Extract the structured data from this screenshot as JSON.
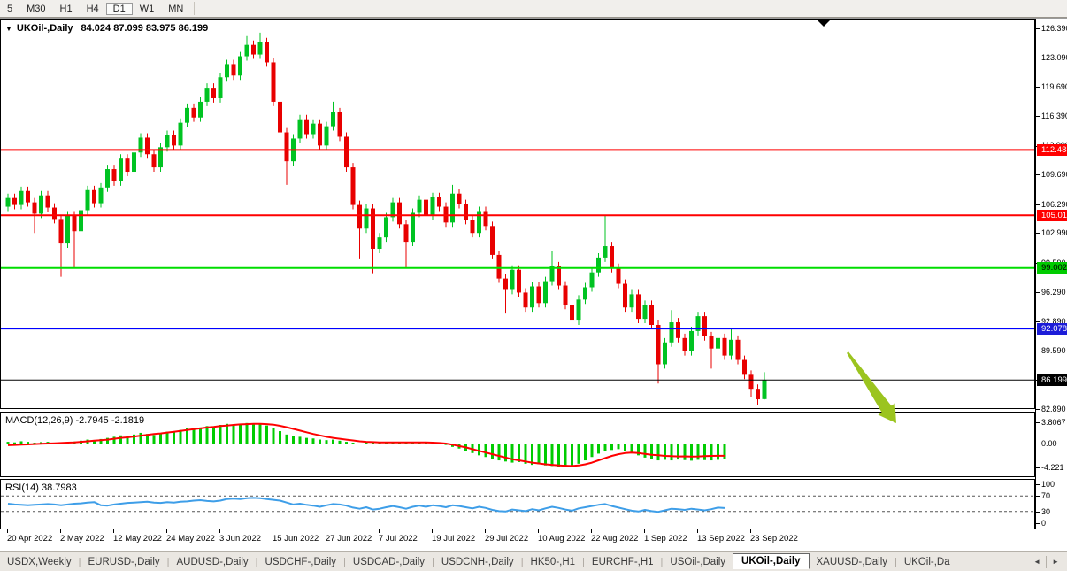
{
  "toolbar": {
    "timeframes": [
      {
        "label": "5",
        "active": false
      },
      {
        "label": "M30",
        "active": false
      },
      {
        "label": "H1",
        "active": false
      },
      {
        "label": "H4",
        "active": false
      },
      {
        "label": "D1",
        "active": true
      },
      {
        "label": "W1",
        "active": false
      },
      {
        "label": "MN",
        "active": false
      }
    ]
  },
  "chart": {
    "dropdown_icon": "▼",
    "symbol_label": "UKOil-,Daily",
    "ohlc_label": "84.024 87.099 83.975 86.199",
    "macd_label": "MACD(12,26,9) -2.7945 -2.1819",
    "rsi_label": "RSI(14) 38.7983"
  },
  "chart_data": {
    "type": "candlestick",
    "symbol": "UKOil-",
    "timeframe": "Daily",
    "current_ohlc": {
      "open": 84.024,
      "high": 87.099,
      "low": 83.975,
      "close": 86.199
    },
    "colors": {
      "bull": "#00c322",
      "bear": "#e80000",
      "macd_hist": "#00cc00",
      "macd_signal": "#ff0000",
      "rsi_line": "#3e9ee8",
      "arrow": "#9bc41f"
    },
    "y_axis_ticks": [
      "126.390",
      "123.090",
      "119.690",
      "116.390",
      "112.990",
      "109.690",
      "106.290",
      "102.990",
      "99.590",
      "96.290",
      "92.890",
      "89.590",
      "86.290",
      "82.890"
    ],
    "hlines": [
      {
        "price": 112.488,
        "label": "112.488",
        "color": "#ff0000",
        "label_bg": "#ff0000",
        "label_fg": "#ffffff",
        "width": 2
      },
      {
        "price": 105.015,
        "label": "105.015",
        "color": "#ff0000",
        "label_bg": "#ff0000",
        "label_fg": "#ffffff",
        "width": 2
      },
      {
        "price": 99.002,
        "label": "99.002",
        "color": "#00dd00",
        "label_bg": "#00cc00",
        "label_fg": "#000000",
        "width": 2
      },
      {
        "price": 92.078,
        "label": "92.078",
        "color": "#0000ff",
        "label_bg": "#1c1cd8",
        "label_fg": "#ffffff",
        "width": 2
      },
      {
        "price": 86.199,
        "label": "86.199",
        "color": "#000000",
        "label_bg": "#000000",
        "label_fg": "#ffffff",
        "width": 1
      }
    ],
    "x_ticks": [
      "20 Apr 2022",
      "2 May 2022",
      "12 May 2022",
      "24 May 2022",
      "3 Jun 2022",
      "15 Jun 2022",
      "27 Jun 2022",
      "7 Jul 2022",
      "19 Jul 2022",
      "29 Jul 2022",
      "10 Aug 2022",
      "22 Aug 2022",
      "1 Sep 2022",
      "13 Sep 2022",
      "23 Sep 2022"
    ],
    "candles": [
      [
        106.0,
        107.5,
        105.5,
        107.0
      ],
      [
        107.0,
        107.5,
        105.7,
        106.2
      ],
      [
        106.2,
        108.3,
        105.7,
        107.8
      ],
      [
        107.8,
        108.3,
        106.0,
        106.5
      ],
      [
        106.5,
        107.0,
        103.0,
        105.2
      ],
      [
        105.2,
        107.8,
        104.7,
        107.3
      ],
      [
        107.3,
        107.8,
        105.4,
        105.9
      ],
      [
        105.9,
        106.4,
        104.1,
        104.6
      ],
      [
        104.6,
        105.1,
        98.0,
        101.8
      ],
      [
        101.8,
        105.5,
        101.3,
        105.0
      ],
      [
        105.0,
        105.5,
        99.0,
        103.2
      ],
      [
        103.2,
        106.1,
        102.7,
        105.6
      ],
      [
        105.6,
        108.4,
        105.1,
        107.9
      ],
      [
        107.9,
        108.4,
        105.9,
        106.4
      ],
      [
        106.4,
        108.7,
        105.9,
        108.2
      ],
      [
        108.2,
        110.8,
        107.7,
        110.3
      ],
      [
        110.3,
        110.8,
        108.4,
        108.9
      ],
      [
        108.9,
        112.0,
        108.4,
        111.5
      ],
      [
        111.5,
        112.0,
        109.5,
        110.0
      ],
      [
        110.0,
        112.7,
        109.5,
        112.2
      ],
      [
        112.2,
        114.4,
        111.7,
        113.9
      ],
      [
        113.9,
        114.4,
        111.5,
        112.0
      ],
      [
        112.0,
        112.5,
        110.0,
        110.5
      ],
      [
        110.5,
        113.3,
        110.0,
        112.8
      ],
      [
        112.8,
        114.7,
        112.3,
        114.2
      ],
      [
        114.2,
        114.7,
        112.5,
        113.0
      ],
      [
        113.0,
        116.1,
        112.5,
        115.6
      ],
      [
        115.6,
        117.8,
        115.1,
        117.3
      ],
      [
        117.3,
        117.8,
        115.7,
        116.2
      ],
      [
        116.2,
        118.5,
        115.7,
        118.0
      ],
      [
        118.0,
        120.1,
        117.5,
        119.6
      ],
      [
        119.6,
        120.1,
        117.9,
        118.4
      ],
      [
        118.4,
        121.3,
        117.9,
        120.8
      ],
      [
        120.8,
        122.8,
        120.3,
        122.3
      ],
      [
        122.3,
        122.8,
        120.5,
        121.0
      ],
      [
        121.0,
        123.7,
        120.5,
        123.2
      ],
      [
        123.2,
        125.5,
        122.7,
        124.5
      ],
      [
        124.5,
        125.0,
        122.9,
        123.4
      ],
      [
        123.4,
        125.9,
        122.9,
        124.8
      ],
      [
        124.8,
        125.3,
        122.0,
        122.5
      ],
      [
        122.5,
        123.0,
        117.5,
        118.0
      ],
      [
        118.0,
        118.5,
        114.0,
        114.5
      ],
      [
        114.5,
        115.0,
        108.5,
        111.2
      ],
      [
        111.2,
        114.3,
        110.7,
        113.8
      ],
      [
        113.8,
        116.5,
        113.3,
        116.0
      ],
      [
        116.0,
        116.5,
        113.8,
        114.3
      ],
      [
        114.3,
        116.0,
        113.8,
        115.5
      ],
      [
        115.5,
        116.0,
        112.5,
        113.0
      ],
      [
        113.0,
        115.7,
        112.5,
        115.2
      ],
      [
        115.2,
        118.0,
        114.7,
        116.8
      ],
      [
        116.8,
        117.3,
        113.5,
        114.0
      ],
      [
        114.0,
        114.5,
        110.0,
        110.5
      ],
      [
        110.5,
        111.0,
        105.7,
        106.2
      ],
      [
        106.2,
        106.7,
        100.0,
        103.5
      ],
      [
        103.5,
        106.3,
        103.0,
        105.8
      ],
      [
        105.8,
        106.3,
        98.4,
        101.2
      ],
      [
        101.2,
        103.0,
        100.7,
        102.5
      ],
      [
        102.5,
        105.3,
        102.0,
        104.8
      ],
      [
        104.8,
        107.0,
        104.3,
        106.5
      ],
      [
        106.5,
        107.0,
        103.5,
        104.0
      ],
      [
        104.0,
        104.5,
        99.0,
        102.0
      ],
      [
        102.0,
        105.8,
        101.5,
        105.3
      ],
      [
        105.3,
        107.3,
        104.8,
        106.8
      ],
      [
        106.8,
        107.3,
        104.5,
        105.0
      ],
      [
        105.0,
        107.6,
        104.5,
        107.1
      ],
      [
        107.1,
        107.6,
        105.5,
        106.0
      ],
      [
        106.0,
        106.5,
        103.7,
        104.2
      ],
      [
        104.2,
        108.5,
        103.7,
        107.5
      ],
      [
        107.5,
        108.0,
        105.8,
        106.3
      ],
      [
        106.3,
        106.8,
        104.0,
        104.5
      ],
      [
        104.5,
        105.0,
        102.5,
        103.0
      ],
      [
        103.0,
        106.0,
        102.5,
        105.5
      ],
      [
        105.5,
        106.0,
        103.3,
        103.8
      ],
      [
        103.8,
        104.3,
        100.0,
        100.5
      ],
      [
        100.5,
        101.0,
        97.3,
        97.8
      ],
      [
        97.8,
        98.3,
        93.8,
        96.5
      ],
      [
        96.5,
        99.3,
        96.0,
        98.8
      ],
      [
        98.8,
        99.3,
        95.7,
        96.2
      ],
      [
        96.2,
        96.7,
        94.0,
        94.5
      ],
      [
        94.5,
        97.4,
        94.0,
        96.9
      ],
      [
        96.9,
        97.4,
        94.5,
        95.0
      ],
      [
        95.0,
        98.0,
        94.5,
        97.5
      ],
      [
        97.5,
        101.0,
        97.0,
        99.2
      ],
      [
        99.2,
        99.7,
        96.5,
        97.0
      ],
      [
        97.0,
        97.5,
        94.3,
        94.8
      ],
      [
        94.8,
        95.3,
        91.6,
        93.0
      ],
      [
        93.0,
        95.9,
        92.5,
        95.4
      ],
      [
        95.4,
        97.3,
        94.9,
        96.8
      ],
      [
        96.8,
        99.0,
        96.3,
        98.5
      ],
      [
        98.5,
        100.7,
        98.0,
        100.2
      ],
      [
        100.2,
        105.0,
        99.7,
        101.5
      ],
      [
        101.5,
        102.0,
        98.5,
        99.0
      ],
      [
        99.0,
        99.5,
        96.7,
        97.2
      ],
      [
        97.2,
        97.7,
        94.0,
        94.5
      ],
      [
        94.5,
        96.5,
        94.0,
        96.0
      ],
      [
        96.0,
        96.5,
        92.7,
        93.2
      ],
      [
        93.2,
        95.3,
        92.7,
        94.8
      ],
      [
        94.8,
        95.3,
        92.0,
        92.5
      ],
      [
        92.5,
        93.0,
        85.8,
        88.0
      ],
      [
        88.0,
        91.0,
        87.5,
        90.5
      ],
      [
        90.5,
        94.2,
        90.0,
        92.8
      ],
      [
        92.8,
        93.3,
        90.5,
        91.0
      ],
      [
        91.0,
        91.5,
        89.0,
        89.5
      ],
      [
        89.5,
        92.3,
        89.0,
        91.8
      ],
      [
        91.8,
        94.0,
        91.3,
        93.5
      ],
      [
        93.5,
        94.0,
        90.7,
        91.2
      ],
      [
        91.2,
        91.7,
        87.5,
        89.8
      ],
      [
        89.8,
        91.5,
        89.3,
        91.0
      ],
      [
        91.0,
        91.5,
        88.5,
        89.0
      ],
      [
        89.0,
        92.0,
        88.5,
        90.8
      ],
      [
        90.8,
        91.3,
        88.0,
        88.5
      ],
      [
        88.5,
        89.0,
        86.3,
        86.8
      ],
      [
        86.8,
        87.3,
        84.3,
        85.2
      ],
      [
        85.2,
        85.7,
        83.3,
        84.0
      ],
      [
        84.02,
        87.1,
        83.98,
        86.2
      ]
    ],
    "macd": {
      "name": "MACD(12,26,9)",
      "current_values": [
        -2.7945,
        -2.1819
      ],
      "axis_labels": [
        "3.8067",
        "0.00",
        "-4.221"
      ],
      "axis_values": [
        3.8067,
        0,
        -4.221
      ],
      "histogram": [
        0.3,
        0.2,
        0.4,
        0.3,
        0.15,
        0.25,
        0.3,
        0.1,
        -0.15,
        0.25,
        0.35,
        0.5,
        0.7,
        0.6,
        0.8,
        1.0,
        1.2,
        1.45,
        1.3,
        1.6,
        1.9,
        1.7,
        1.5,
        1.85,
        2.1,
        2.0,
        2.4,
        2.7,
        2.5,
        2.85,
        3.1,
        2.9,
        3.3,
        3.5,
        3.2,
        3.5,
        3.65,
        3.4,
        3.5,
        3.2,
        2.8,
        2.2,
        1.6,
        1.4,
        1.2,
        1.0,
        0.9,
        0.7,
        0.6,
        0.7,
        0.5,
        0.3,
        0.15,
        -0.1,
        0.15,
        0.2,
        0.15,
        0.2,
        0.25,
        0.2,
        0.15,
        0.2,
        0.25,
        0.2,
        0.15,
        0.2,
        -0.25,
        -0.6,
        -0.9,
        -1.3,
        -1.7,
        -2.1,
        -2.4,
        -2.7,
        -3.0,
        -3.2,
        -3.4,
        -3.3,
        -3.6,
        -3.8,
        -3.7,
        -3.9,
        -4.0,
        -4.2,
        -4.1,
        -4.0,
        -3.6,
        -3.0,
        -2.4,
        -1.8,
        -1.4,
        -1.15,
        -1.0,
        -1.3,
        -1.7,
        -2.1,
        -2.5,
        -2.8,
        -3.0,
        -2.9,
        -3.0,
        -2.85,
        -2.95,
        -3.05,
        -2.9,
        -2.95,
        -3.0,
        -2.9,
        -2.7945
      ],
      "signal": [
        -0.3,
        -0.25,
        -0.2,
        -0.15,
        -0.1,
        -0.05,
        0.0,
        0.05,
        0.1,
        0.15,
        0.2,
        0.3,
        0.4,
        0.5,
        0.6,
        0.7,
        0.85,
        1.0,
        1.1,
        1.25,
        1.4,
        1.55,
        1.7,
        1.8,
        1.95,
        2.1,
        2.25,
        2.4,
        2.55,
        2.7,
        2.85,
        2.95,
        3.1,
        3.2,
        3.3,
        3.4,
        3.45,
        3.5,
        3.5,
        3.45,
        3.35,
        3.15,
        2.9,
        2.6,
        2.3,
        2.0,
        1.7,
        1.45,
        1.2,
        1.0,
        0.85,
        0.7,
        0.55,
        0.4,
        0.3,
        0.25,
        0.2,
        0.2,
        0.2,
        0.2,
        0.2,
        0.2,
        0.2,
        0.2,
        0.15,
        0.1,
        0.0,
        -0.2,
        -0.45,
        -0.7,
        -1.0,
        -1.3,
        -1.6,
        -1.9,
        -2.2,
        -2.5,
        -2.8,
        -3.0,
        -3.2,
        -3.4,
        -3.55,
        -3.7,
        -3.8,
        -3.9,
        -3.95,
        -4.0,
        -3.9,
        -3.7,
        -3.4,
        -3.0,
        -2.6,
        -2.2,
        -1.9,
        -1.7,
        -1.6,
        -1.7,
        -1.85,
        -2.0,
        -2.1,
        -2.2,
        -2.25,
        -2.3,
        -2.28,
        -2.32,
        -2.3,
        -2.25,
        -2.2,
        -2.19,
        -2.1819
      ]
    },
    "rsi": {
      "name": "RSI(14)",
      "current_value": 38.7983,
      "axis_labels": [
        "100",
        "70",
        "30",
        "0"
      ],
      "axis_values": [
        100,
        70,
        30,
        0
      ],
      "levels": [
        70,
        30
      ],
      "line": [
        50,
        48,
        47,
        46,
        47,
        48,
        49,
        48,
        46,
        48,
        50,
        51,
        53,
        54,
        46,
        45,
        48,
        50,
        52,
        53,
        54,
        55,
        53,
        52,
        54,
        53,
        55,
        56,
        58,
        59,
        57,
        56,
        58,
        62,
        63,
        62,
        64,
        65,
        64,
        62,
        60,
        58,
        53,
        48,
        50,
        47,
        45,
        42,
        46,
        49,
        48,
        45,
        40,
        37,
        41,
        35,
        37,
        41,
        44,
        41,
        37,
        42,
        45,
        42,
        46,
        44,
        41,
        46,
        44,
        41,
        38,
        42,
        39,
        34,
        31,
        30,
        35,
        33,
        31,
        36,
        33,
        38,
        42,
        39,
        35,
        32,
        38,
        41,
        44,
        47,
        49,
        44,
        40,
        36,
        32,
        30,
        34,
        31,
        29,
        33,
        37,
        36,
        34,
        37,
        35,
        33,
        36,
        40,
        38.8
      ]
    },
    "arrow": {
      "from_x": 958,
      "from_y": 398,
      "to_x": 1013,
      "to_y": 478
    }
  },
  "tabs": {
    "items": [
      {
        "label": "USDX,Weekly",
        "active": false
      },
      {
        "label": "EURUSD-,Daily",
        "active": false
      },
      {
        "label": "AUDUSD-,Daily",
        "active": false
      },
      {
        "label": "USDCHF-,Daily",
        "active": false
      },
      {
        "label": "USDCAD-,Daily",
        "active": false
      },
      {
        "label": "USDCNH-,Daily",
        "active": false
      },
      {
        "label": "HK50-,H1",
        "active": false
      },
      {
        "label": "EURCHF-,H1",
        "active": false
      },
      {
        "label": "USOil-,Daily",
        "active": false
      },
      {
        "label": "UKOil-,Daily",
        "active": true
      },
      {
        "label": "XAUUSD-,Daily",
        "active": false
      },
      {
        "label": "UKOil-,Da",
        "active": false
      }
    ],
    "scroll_left_icon": "◄",
    "scroll_right_icon": "►"
  }
}
